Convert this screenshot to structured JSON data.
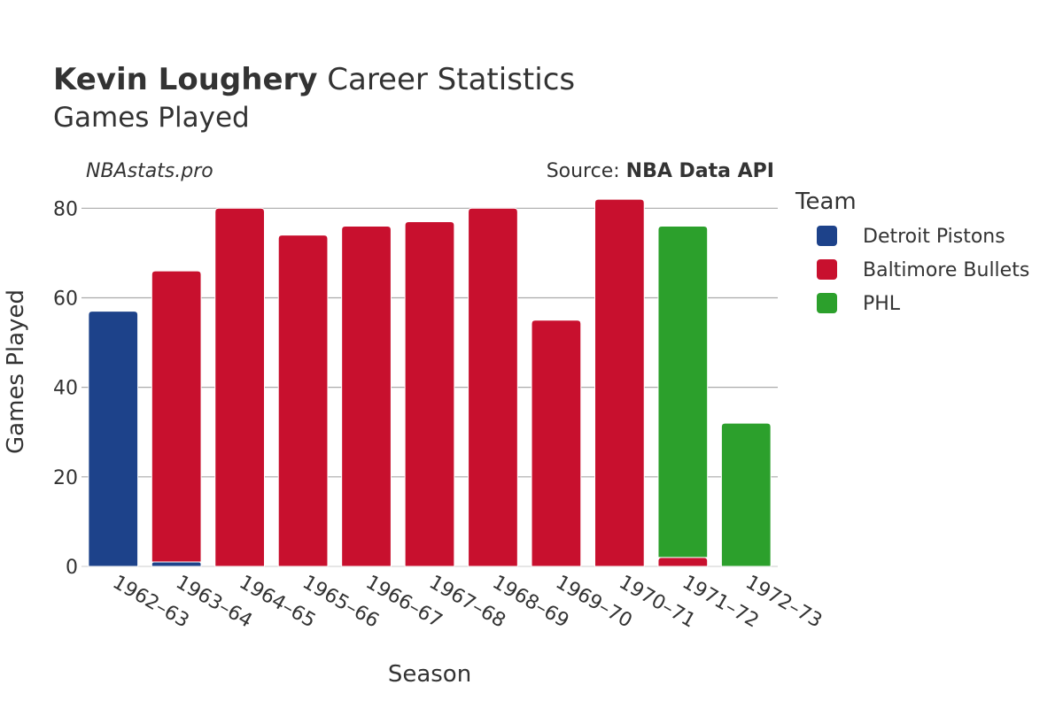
{
  "header": {
    "title_bold": "Kevin Loughery",
    "title_rest": " Career Statistics",
    "subtitle": "Games Played"
  },
  "watermark": "NBAstats.pro",
  "source": {
    "prefix": "Source: ",
    "name": "NBA Data API"
  },
  "chart_data": {
    "type": "bar",
    "stacked": true,
    "title": "Kevin Loughery Career Statistics",
    "subtitle": "Games Played",
    "xlabel": "Season",
    "ylabel": "Games Played",
    "ylim": [
      0,
      85
    ],
    "yticks": [
      0,
      20,
      40,
      60,
      80
    ],
    "grid": true,
    "legend_title": "Team",
    "legend_position": "right",
    "categories": [
      "1962–63",
      "1963–64",
      "1964–65",
      "1965–66",
      "1966–67",
      "1967–68",
      "1968–69",
      "1969–70",
      "1970–71",
      "1971–72",
      "1972–73"
    ],
    "series": [
      {
        "name": "Detroit Pistons",
        "color": "#1d428a",
        "values": [
          57,
          1,
          0,
          0,
          0,
          0,
          0,
          0,
          0,
          0,
          0
        ]
      },
      {
        "name": "Baltimore Bullets",
        "color": "#c8102e",
        "values": [
          0,
          65,
          80,
          74,
          76,
          77,
          80,
          55,
          82,
          2,
          0
        ]
      },
      {
        "name": "PHL",
        "color": "#2ca02c",
        "values": [
          0,
          0,
          0,
          0,
          0,
          0,
          0,
          0,
          0,
          74,
          32
        ]
      }
    ]
  }
}
